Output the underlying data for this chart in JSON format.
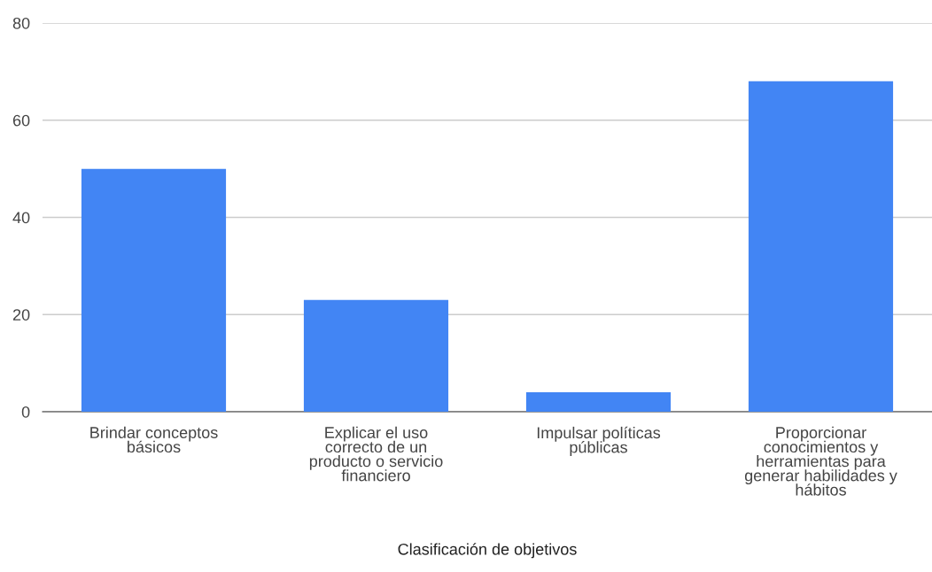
{
  "chart_data": {
    "type": "bar",
    "xlabel": "Clasificación de objetivos",
    "categories": [
      "Brindar conceptos básicos",
      "Explicar el uso correcto de un producto o servicio financiero",
      "Impulsar políticas públicas",
      "Proporcionar conocimientos y herramientas para generar habilidades y hábitos"
    ],
    "values": [
      50,
      23,
      4,
      68
    ],
    "color": "#4285f4",
    "ylim": [
      0,
      80
    ],
    "yticks": [
      0,
      20,
      40,
      60,
      80
    ],
    "grid": "y"
  }
}
